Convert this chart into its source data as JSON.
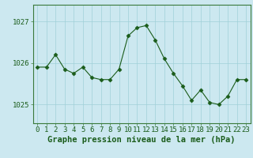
{
  "x": [
    0,
    1,
    2,
    3,
    4,
    5,
    6,
    7,
    8,
    9,
    10,
    11,
    12,
    13,
    14,
    15,
    16,
    17,
    18,
    19,
    20,
    21,
    22,
    23
  ],
  "y": [
    1025.9,
    1025.9,
    1026.2,
    1025.85,
    1025.75,
    1025.9,
    1025.65,
    1025.6,
    1025.6,
    1025.85,
    1026.65,
    1026.85,
    1026.9,
    1026.55,
    1026.1,
    1025.75,
    1025.45,
    1025.1,
    1025.35,
    1025.05,
    1025.0,
    1025.2,
    1025.6,
    1025.6
  ],
  "bg_color": "#cce8f0",
  "line_color": "#1a5c1a",
  "marker_color": "#1a5c1a",
  "grid_color": "#a0d0d8",
  "axis_color": "#3a7a3a",
  "xlabel": "Graphe pression niveau de la mer (hPa)",
  "yticks": [
    1025,
    1026,
    1027
  ],
  "ylim": [
    1024.55,
    1027.4
  ],
  "xlim": [
    -0.5,
    23.5
  ],
  "tick_label_color": "#1a5c1a",
  "xlabel_color": "#1a5c1a",
  "xlabel_fontsize": 7.5,
  "tick_fontsize": 6.5
}
